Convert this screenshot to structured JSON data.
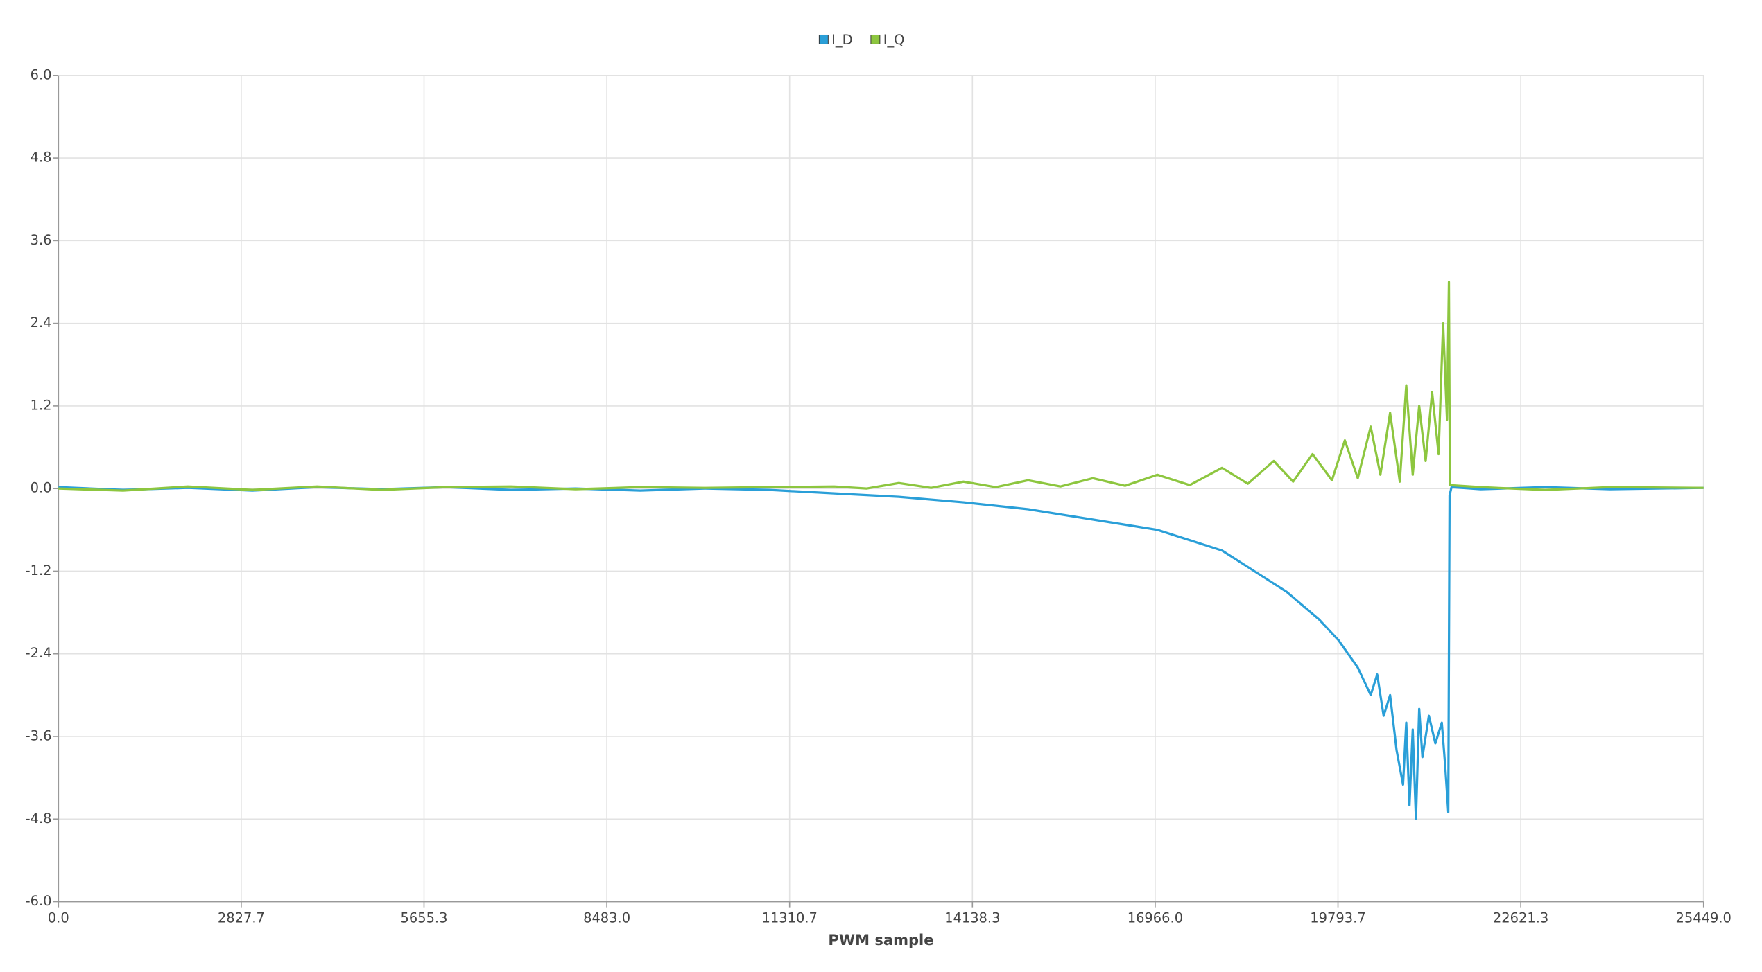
{
  "chart_data": {
    "type": "line",
    "x_label": "PWM sample",
    "legend": "top",
    "grid": true,
    "xlim": [
      0,
      25449
    ],
    "ylim": [
      -6,
      6
    ],
    "xticks": [
      {
        "value": 0,
        "label": "0.0"
      },
      2827.7,
      5655.3,
      {
        "value": 8483,
        "label": "8483.0"
      },
      11310.7,
      14138.3,
      {
        "value": 16966,
        "label": "16966.0"
      },
      19793.7,
      22621.3,
      {
        "value": 25449,
        "label": "25449.0"
      }
    ],
    "yticks": [
      {
        "value": 6,
        "label": "6.0"
      },
      4.8,
      3.6,
      2.4,
      1.2,
      {
        "value": 0,
        "label": "0.0"
      },
      -1.2,
      -2.4,
      -3.6,
      -4.8,
      {
        "value": -6,
        "label": "-6.0"
      }
    ],
    "series": [
      {
        "name": "I_D",
        "color": "#2a9fd8",
        "x": [
          0,
          1000,
          2000,
          3000,
          4000,
          5000,
          6000,
          7000,
          8000,
          9000,
          10000,
          11000,
          12000,
          13000,
          14000,
          15000,
          16000,
          17000,
          17500,
          18000,
          18500,
          19000,
          19500,
          19800,
          20100,
          20300,
          20400,
          20500,
          20600,
          20700,
          20800,
          20850,
          20900,
          20950,
          21000,
          21050,
          21100,
          21200,
          21300,
          21400,
          21450,
          21500,
          21520,
          21550,
          22000,
          23000,
          24000,
          25449
        ],
        "values": [
          0.02,
          -0.02,
          0.01,
          -0.03,
          0.02,
          -0.01,
          0.02,
          -0.02,
          0,
          -0.03,
          0,
          -0.02,
          -0.07,
          -0.12,
          -0.2,
          -0.3,
          -0.45,
          -0.6,
          -0.75,
          -0.9,
          -1.2,
          -1.5,
          -1.9,
          -2.2,
          -2.6,
          -3.0,
          -2.7,
          -3.3,
          -3.0,
          -3.8,
          -4.3,
          -3.4,
          -4.6,
          -3.5,
          -4.8,
          -3.2,
          -3.9,
          -3.3,
          -3.7,
          -3.4,
          -4.0,
          -4.7,
          -0.1,
          0.02,
          -0.01,
          0.02,
          -0.01,
          0.01
        ]
      },
      {
        "name": "I_Q",
        "color": "#8dc63f",
        "x": [
          0,
          1000,
          2000,
          3000,
          4000,
          5000,
          6000,
          7000,
          8000,
          9000,
          10000,
          11000,
          12000,
          12500,
          13000,
          13500,
          14000,
          14500,
          15000,
          15500,
          16000,
          16500,
          17000,
          17500,
          18000,
          18400,
          18800,
          19100,
          19400,
          19700,
          19900,
          20100,
          20300,
          20450,
          20600,
          20750,
          20850,
          20950,
          21050,
          21150,
          21250,
          21350,
          21420,
          21480,
          21510,
          21525,
          22000,
          23000,
          24000,
          25449
        ],
        "values": [
          0,
          -0.03,
          0.03,
          -0.02,
          0.03,
          -0.02,
          0.02,
          0.03,
          -0.01,
          0.02,
          0.01,
          0.02,
          0.03,
          0.0,
          0.08,
          0.01,
          0.1,
          0.02,
          0.12,
          0.03,
          0.15,
          0.04,
          0.2,
          0.05,
          0.3,
          0.07,
          0.4,
          0.1,
          0.5,
          0.12,
          0.7,
          0.15,
          0.9,
          0.2,
          1.1,
          0.1,
          1.5,
          0.2,
          1.2,
          0.4,
          1.4,
          0.5,
          2.4,
          1.0,
          3.0,
          0.05,
          0.02,
          -0.02,
          0.02,
          0.01
        ]
      }
    ]
  }
}
